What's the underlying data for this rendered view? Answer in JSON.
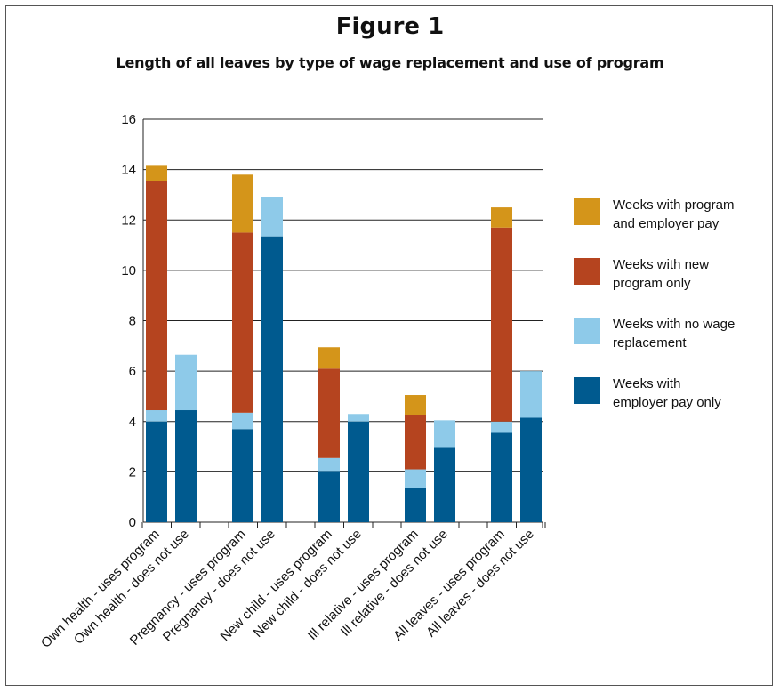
{
  "figure": {
    "title": "Figure 1",
    "subtitle": "Length of all leaves by type of wage replacement and use of program"
  },
  "chart_data": {
    "type": "bar",
    "stacked": true,
    "categories": [
      "Own health - uses program",
      "Own health - does not use",
      "Pregnancy - uses program",
      "Pregnancy - does not use",
      "New child - uses program",
      "New child - does not use",
      "Ill relative - uses program",
      "Ill relative - does not use",
      "All leaves - uses program",
      "All leaves - does not use"
    ],
    "groups": [
      [
        0,
        1
      ],
      [
        2,
        3
      ],
      [
        4,
        5
      ],
      [
        6,
        7
      ],
      [
        8,
        9
      ]
    ],
    "series": [
      {
        "name": "Weeks with employer pay only",
        "legend_lines": [
          "Weeks with",
          "employer pay only"
        ],
        "color": "#005a8f",
        "values": [
          4.0,
          4.45,
          3.7,
          11.35,
          2.0,
          4.0,
          1.35,
          2.95,
          3.55,
          4.15
        ]
      },
      {
        "name": "Weeks with no wage replacement",
        "legend_lines": [
          "Weeks with no wage",
          "replacement"
        ],
        "color": "#8ecae9",
        "values": [
          0.45,
          2.2,
          0.65,
          1.55,
          0.55,
          0.3,
          0.75,
          1.1,
          0.45,
          1.85
        ]
      },
      {
        "name": "Weeks with new program only",
        "legend_lines": [
          "Weeks with new",
          "program only"
        ],
        "color": "#b5441f",
        "values": [
          9.1,
          0,
          7.15,
          0,
          3.55,
          0,
          2.15,
          0,
          7.7,
          0
        ]
      },
      {
        "name": "Weeks with program and employer pay",
        "legend_lines": [
          "Weeks with program",
          "and employer pay"
        ],
        "color": "#d4951a",
        "values": [
          0.6,
          0,
          2.3,
          0,
          0.85,
          0,
          0.8,
          0,
          0.8,
          0
        ]
      }
    ],
    "legend_order": [
      3,
      2,
      1,
      0
    ],
    "legend_position": "right",
    "ylim": [
      0,
      16
    ],
    "yticks": [
      "0",
      "2",
      "4",
      "6",
      "8",
      "10",
      "12",
      "14",
      "16"
    ],
    "grid": true
  }
}
